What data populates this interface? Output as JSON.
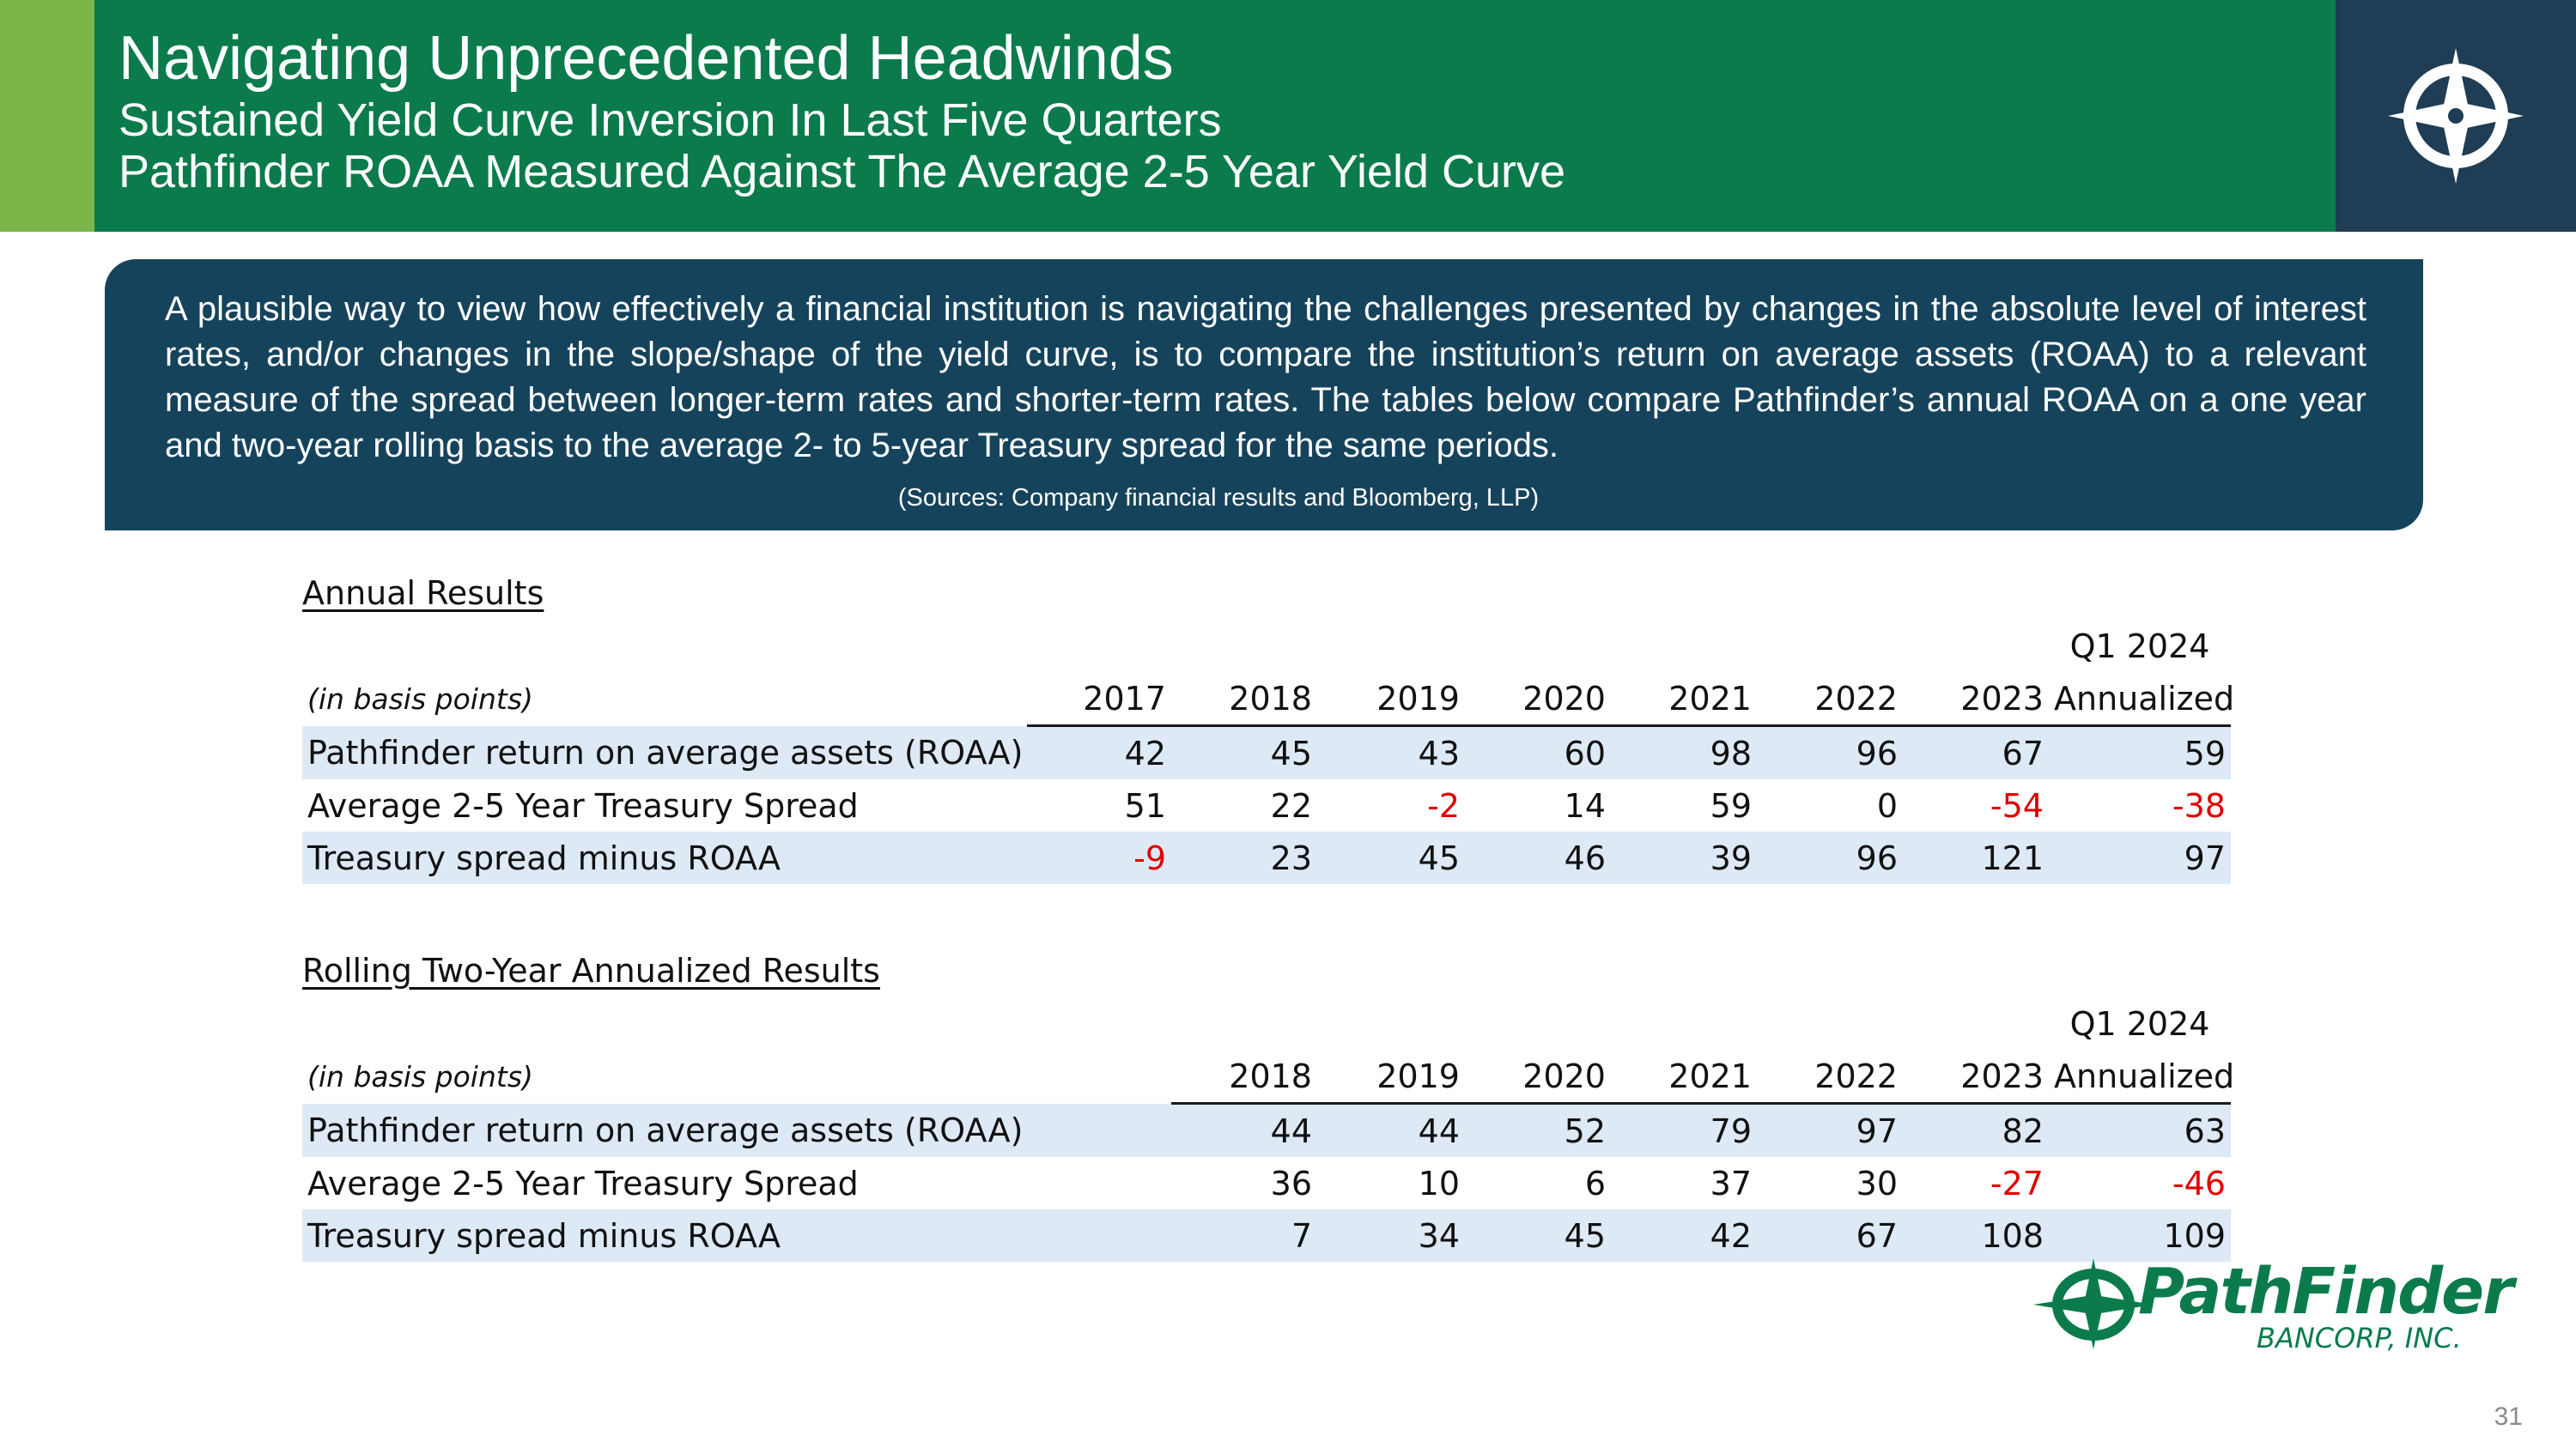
{
  "header": {
    "title": "Navigating Unprecedented Headwinds",
    "subtitle_1": "Sustained Yield Curve Inversion In Last Five Quarters",
    "subtitle_2": "Pathfinder ROAA Measured Against The Average 2-5 Year Yield Curve",
    "logo_icon": "compass-star-icon"
  },
  "intro": {
    "text": "A plausible way to view how effectively a financial institution is navigating the challenges presented by changes in the absolute level of interest rates, and/or changes in the slope/shape of the yield curve, is to compare the institution’s return on average assets (ROAA) to a relevant measure of the spread between longer-term rates and shorter-term rates. The tables below compare Pathfinder’s annual ROAA on a one year and two-year rolling basis to the average 2- to 5-year Treasury spread for the same periods.",
    "source": "(Sources: Company financial results and Bloomberg, LLP)"
  },
  "annual": {
    "title": "Annual Results",
    "units": "(in basis points)",
    "q_label": "Q1 2024",
    "columns": [
      "2017",
      "2018",
      "2019",
      "2020",
      "2021",
      "2022",
      "2023",
      "Annualized"
    ],
    "rows": [
      {
        "label": "Pathfinder return on average assets (ROAA)",
        "values": [
          "42",
          "45",
          "43",
          "60",
          "98",
          "96",
          "67",
          "59"
        ]
      },
      {
        "label": "Average 2-5 Year Treasury Spread",
        "values": [
          "51",
          "22",
          "-2",
          "14",
          "59",
          "0",
          "-54",
          "-38"
        ]
      },
      {
        "label": "Treasury spread minus ROAA",
        "values": [
          "-9",
          "23",
          "45",
          "46",
          "39",
          "96",
          "121",
          "97"
        ]
      }
    ]
  },
  "rolling": {
    "title": "Rolling Two-Year Annualized Results",
    "units": "(in basis points)",
    "q_label": "Q1 2024",
    "columns": [
      "2018",
      "2019",
      "2020",
      "2021",
      "2022",
      "2023",
      "Annualized"
    ],
    "rows": [
      {
        "label": "Pathfinder return on average assets (ROAA)",
        "values": [
          "44",
          "44",
          "52",
          "79",
          "97",
          "82",
          "63"
        ]
      },
      {
        "label": "Average 2-5 Year Treasury Spread",
        "values": [
          "36",
          "10",
          "6",
          "37",
          "30",
          "-27",
          "-46"
        ]
      },
      {
        "label": "Treasury spread minus ROAA",
        "values": [
          "7",
          "34",
          "45",
          "42",
          "67",
          "108",
          "109"
        ]
      }
    ]
  },
  "footer": {
    "brand_name": "PathFinder",
    "brand_sub": "BANCORP, INC.",
    "page_number": "31"
  },
  "colors": {
    "header_green": "#0b7b4c",
    "accent_green": "#7ab648",
    "navy": "#1f3d54",
    "intro_blue": "#16435c",
    "row_shade": "#dde9f5",
    "negative": "#e00000"
  }
}
